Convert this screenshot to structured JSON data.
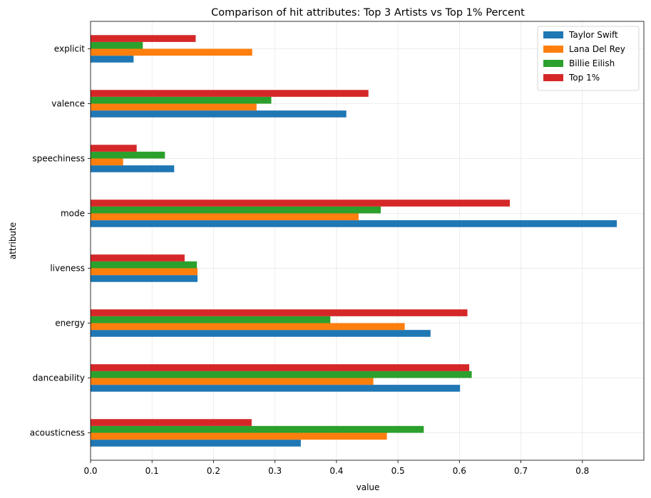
{
  "chart_data": {
    "type": "bar",
    "orientation": "horizontal",
    "title": "Comparison of hit attributes: Top 3 Artists vs Top 1% Percent",
    "xlabel": "value",
    "ylabel": "attribute",
    "xlim": [
      0,
      0.9
    ],
    "x_ticks": [
      "0.0",
      "0.1",
      "0.2",
      "0.3",
      "0.4",
      "0.5",
      "0.6",
      "0.7",
      "0.8"
    ],
    "categories": [
      "acousticness",
      "danceability",
      "energy",
      "liveness",
      "mode",
      "speechiness",
      "valence",
      "explicit"
    ],
    "series": [
      {
        "name": "Taylor Swift",
        "color": "#1f77b4",
        "values": [
          0.342,
          0.601,
          0.553,
          0.174,
          0.856,
          0.136,
          0.416,
          0.07
        ]
      },
      {
        "name": "Lana Del Rey",
        "color": "#ff7f0e",
        "values": [
          0.482,
          0.46,
          0.511,
          0.174,
          0.436,
          0.053,
          0.27,
          0.263
        ]
      },
      {
        "name": "Billie Eilish",
        "color": "#2ca02c",
        "values": [
          0.542,
          0.62,
          0.39,
          0.173,
          0.472,
          0.121,
          0.294,
          0.085
        ]
      },
      {
        "name": "Top 1%",
        "color": "#d62728",
        "values": [
          0.262,
          0.616,
          0.613,
          0.153,
          0.682,
          0.075,
          0.452,
          0.171
        ]
      }
    ],
    "grid": true,
    "legend_position": "top-right"
  }
}
